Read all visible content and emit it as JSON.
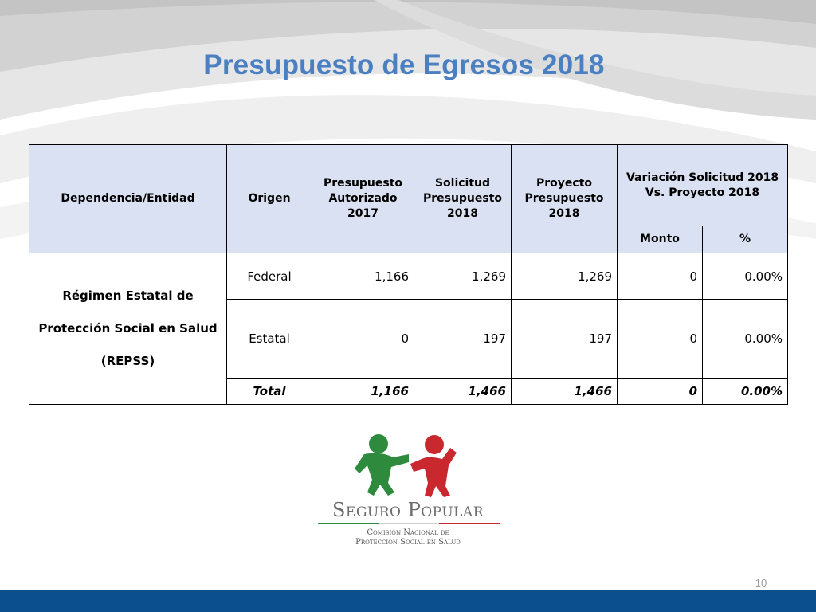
{
  "slide": {
    "title": "Presupuesto de Egresos 2018",
    "page_number": "10"
  },
  "table": {
    "headers": {
      "dependencia": "Dependencia/Entidad",
      "origen": "Origen",
      "autorizado": "Presupuesto Autorizado 2017",
      "solicitud": "Solicitud Presupuesto 2018",
      "proyecto": "Proyecto Presupuesto 2018",
      "variacion": "Variación Solicitud 2018 Vs. Proyecto 2018",
      "monto": "Monto",
      "pct": "%"
    },
    "entity": "Régimen Estatal de Protección Social en Salud (REPSS)",
    "rows": [
      {
        "origen": "Federal",
        "autorizado": "1,166",
        "solicitud": "1,269",
        "proyecto": "1,269",
        "monto": "0",
        "pct": "0.00%"
      },
      {
        "origen": "Estatal",
        "autorizado": "0",
        "solicitud": "197",
        "proyecto": "197",
        "monto": "0",
        "pct": "0.00%"
      },
      {
        "origen": "Total",
        "autorizado": "1,166",
        "solicitud": "1,466",
        "proyecto": "1,466",
        "monto": "0",
        "pct": "0.00%"
      }
    ]
  },
  "logo": {
    "line1": "Seguro Popular",
    "line2": "Comisión Nacional de",
    "line3": "Protección Social en Salud",
    "colors": {
      "green": "#2e8b3e",
      "red": "#c8282e",
      "gray": "#6b6b6b"
    }
  },
  "colors": {
    "title": "#4a7fc1",
    "header_bg": "#d9e1f2",
    "footer_bar": "#0b4f8f"
  }
}
